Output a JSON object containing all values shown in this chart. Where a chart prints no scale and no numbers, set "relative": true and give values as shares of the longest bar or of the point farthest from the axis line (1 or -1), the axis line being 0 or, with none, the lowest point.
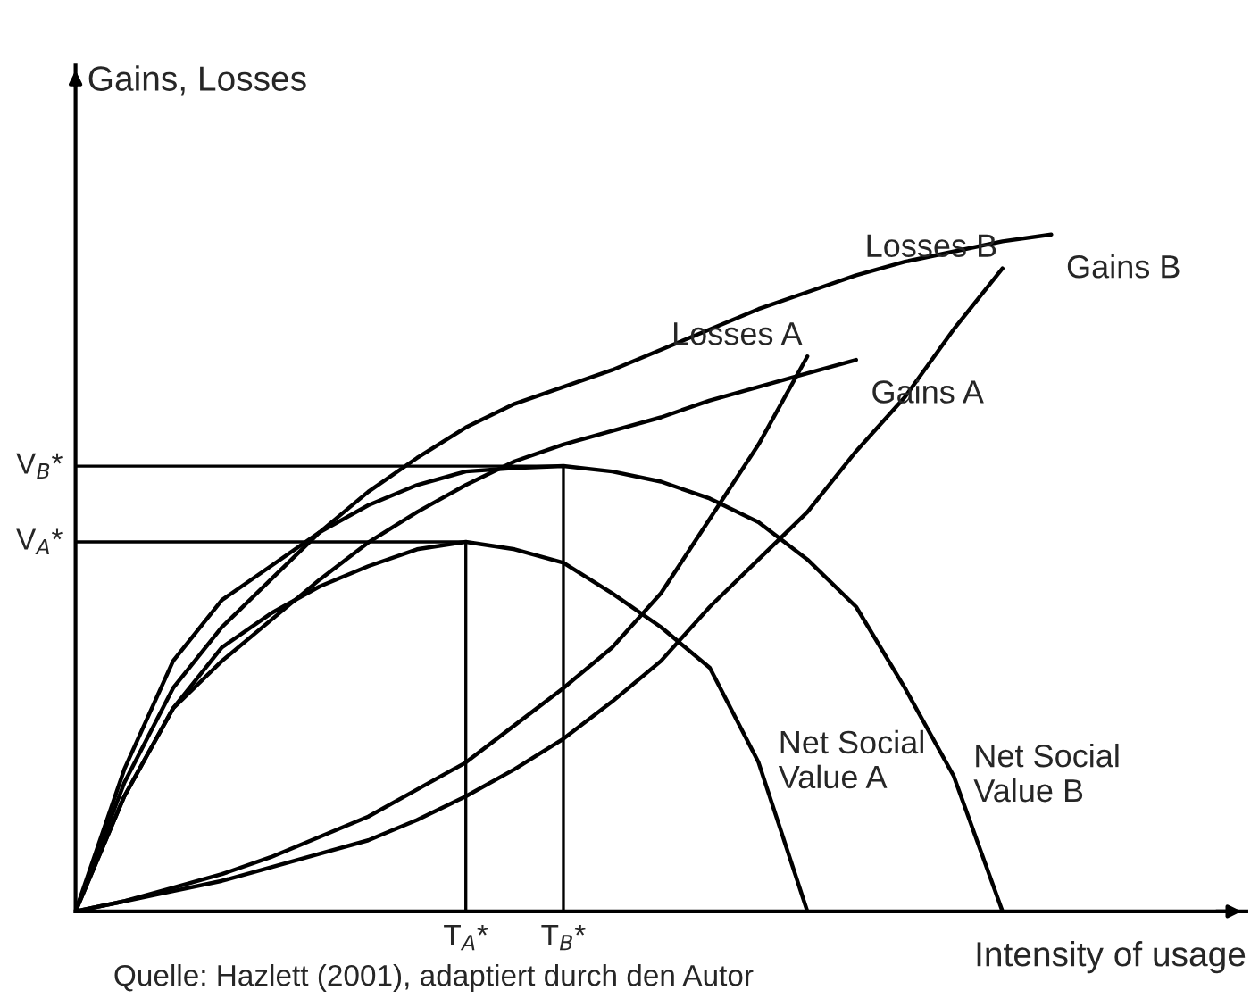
{
  "chart_data": {
    "type": "line",
    "relative": true,
    "xlabel": "Intensity of usage",
    "ylabel": "Gains, Losses",
    "categories": [
      null,
      null,
      null,
      null,
      null,
      null,
      null,
      null,
      "T$_{A}$*",
      null,
      "T$_{B}$*",
      null,
      null,
      null,
      null,
      null,
      null,
      null,
      null,
      null,
      null,
      null,
      null,
      null
    ],
    "annotations": [
      "Quelle: Hazlett (2001), adaptiert durch den Autor",
      "V$_{A}$*",
      "V$_{B}$*"
    ],
    "grid": false,
    "legend": false,
    "marker": "none",
    "line_style": "solid",
    "series": [
      {
        "name": "Gains A",
        "color": "#000000",
        "values": [
          0,
          0.17,
          0.3,
          0.37,
          0.43,
          0.49,
          0.545,
          0.59,
          0.63,
          0.665,
          0.69,
          0.71,
          0.73,
          0.755,
          0.775,
          0.795,
          0.815,
          null,
          null,
          null,
          null,
          null,
          null,
          null
        ]
      },
      {
        "name": "Gains B",
        "color": "#000000",
        "values": [
          0,
          0.19,
          0.33,
          0.42,
          0.49,
          0.56,
          0.62,
          0.67,
          0.715,
          0.75,
          0.775,
          0.8,
          0.83,
          0.86,
          0.89,
          0.915,
          0.94,
          0.96,
          0.975,
          0.99,
          1.0,
          null,
          null,
          null
        ]
      },
      {
        "name": "Losses A",
        "color": "#000000",
        "values": [
          0,
          0.015,
          0.035,
          0.055,
          0.08,
          0.11,
          0.14,
          0.18,
          0.22,
          0.275,
          0.33,
          0.39,
          0.47,
          0.58,
          0.69,
          0.82,
          null,
          null,
          null,
          null,
          null,
          null,
          null,
          null
        ]
      },
      {
        "name": "Losses B",
        "color": "#000000",
        "values": [
          0,
          0.015,
          0.03,
          0.045,
          0.065,
          0.085,
          0.105,
          0.135,
          0.17,
          0.21,
          0.255,
          0.31,
          0.37,
          0.45,
          0.52,
          0.59,
          0.68,
          0.76,
          0.86,
          0.95,
          null,
          null,
          null,
          null
        ]
      },
      {
        "name": "Net Social\nValue A",
        "color": "#000000",
        "values": [
          0,
          0.17,
          0.3,
          0.39,
          0.44,
          0.48,
          0.51,
          0.535,
          0.546,
          0.535,
          0.515,
          0.47,
          0.42,
          0.36,
          0.22,
          0,
          null,
          null,
          null,
          null,
          null,
          null,
          null,
          null
        ]
      },
      {
        "name": "Net Social\nValue B",
        "color": "#000000",
        "values": [
          0,
          0.21,
          0.37,
          0.46,
          0.51,
          0.56,
          0.6,
          0.63,
          0.65,
          0.655,
          0.658,
          0.65,
          0.635,
          0.61,
          0.575,
          0.52,
          0.45,
          0.33,
          0.2,
          0,
          null,
          null,
          null,
          null
        ]
      },
      {
        "color": "#000000",
        "values": [
          0.546,
          0.546,
          0.546,
          0.546,
          0.546,
          0.546,
          0.546,
          0.546,
          0.546,
          null,
          null,
          null,
          null,
          null,
          null,
          null,
          null,
          null,
          null,
          null,
          null,
          null,
          null,
          null
        ]
      },
      {
        "color": "#000000",
        "values": [
          0.658,
          0.658,
          0.658,
          0.658,
          0.658,
          0.658,
          0.658,
          0.658,
          0.658,
          0.658,
          0.658,
          null,
          null,
          null,
          null,
          null,
          null,
          null,
          null,
          null,
          null,
          null,
          null,
          null
        ]
      }
    ]
  }
}
